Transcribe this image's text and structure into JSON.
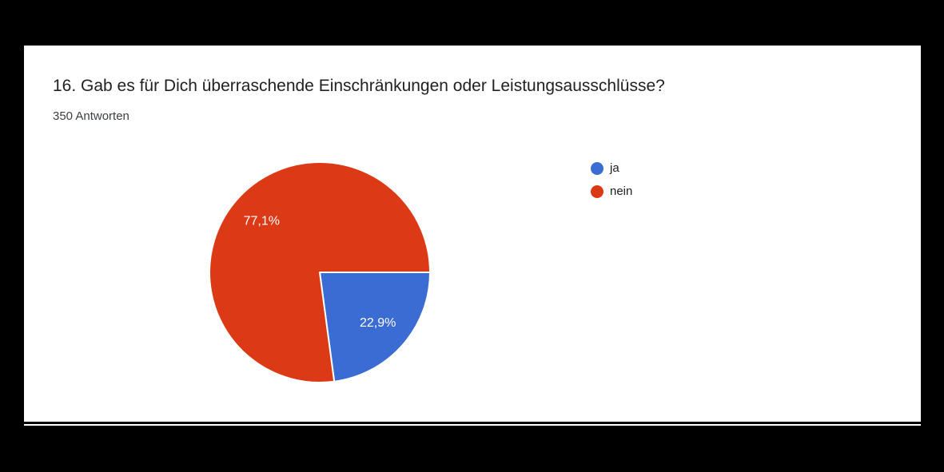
{
  "window": {
    "background_color": "#000000",
    "card_background_color": "#ffffff"
  },
  "header": {
    "title": "16. Gab es für Dich überraschende Einschränkungen oder Leistungsausschlüsse?",
    "responses_count": "350 Antworten"
  },
  "chart_data": {
    "type": "pie",
    "title": "16. Gab es für Dich überraschende Einschränkungen oder Leistungsausschlüsse?",
    "subtitle": "350 Antworten",
    "total_responses": 350,
    "unit": "percent",
    "direction": "clockwise",
    "start_angle_deg_from_east": 0,
    "legend_position": "right",
    "slice_border_color": "#ffffff",
    "label_text_color": "#ffffff",
    "slices": [
      {
        "label": "ja",
        "value": 22.9,
        "display": "22,9%",
        "color": "#3b6cd3"
      },
      {
        "label": "nein",
        "value": 77.1,
        "display": "77,1%",
        "color": "#dc3a16"
      }
    ]
  }
}
